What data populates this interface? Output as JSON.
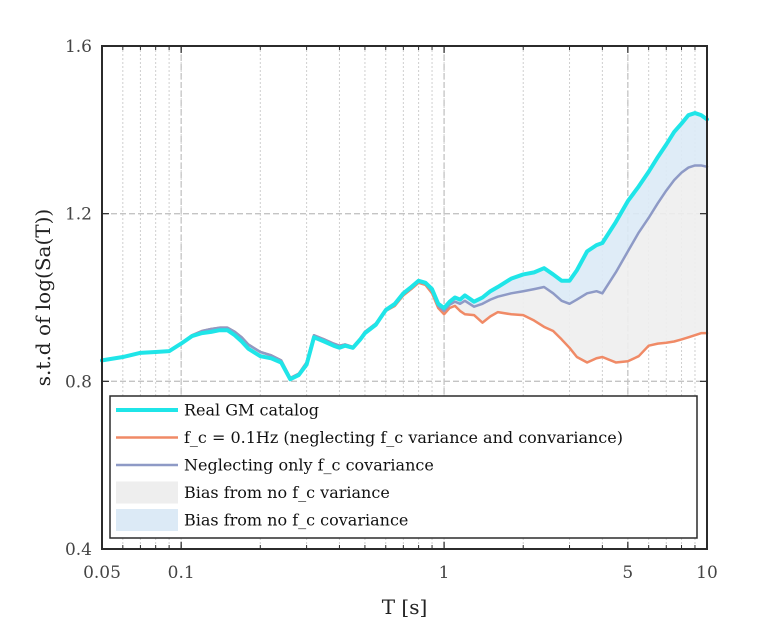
{
  "chart_data": {
    "type": "line",
    "xscale": "log",
    "xlim": [
      0.05,
      10
    ],
    "ylim": [
      0.4,
      1.6
    ],
    "xlabel": "T [s]",
    "ylabel": "s.t.d of log(Sa(T))",
    "xticks": [
      0.05,
      0.1,
      1,
      5,
      10
    ],
    "xtick_labels": [
      "0.05",
      "0.1",
      "1",
      "5",
      "10"
    ],
    "yticks": [
      0.4,
      0.8,
      1.2,
      1.6
    ],
    "ytick_labels": [
      "0.4",
      "0.8",
      "1.2",
      "1.6"
    ],
    "grid": true,
    "legend_position": "bottom-left",
    "colors": {
      "real": "#1FE5E8",
      "fc": "#F08A66",
      "cov": "#8E9AC6",
      "fill_variance": "#EEEEEE",
      "fill_covariance": "#DCEAF6"
    },
    "series": [
      {
        "name": "Real GM catalog",
        "x": [
          0.05,
          0.06,
          0.07,
          0.08,
          0.09,
          0.1,
          0.11,
          0.12,
          0.13,
          0.14,
          0.15,
          0.16,
          0.17,
          0.18,
          0.2,
          0.22,
          0.24,
          0.26,
          0.28,
          0.3,
          0.32,
          0.35,
          0.38,
          0.4,
          0.42,
          0.45,
          0.48,
          0.5,
          0.55,
          0.6,
          0.65,
          0.7,
          0.75,
          0.8,
          0.85,
          0.9,
          0.95,
          1.0,
          1.05,
          1.1,
          1.15,
          1.2,
          1.3,
          1.4,
          1.5,
          1.6,
          1.8,
          2.0,
          2.2,
          2.4,
          2.6,
          2.8,
          3.0,
          3.2,
          3.5,
          3.8,
          4.0,
          4.5,
          5.0,
          5.5,
          6.0,
          6.5,
          7.0,
          7.5,
          8.0,
          8.5,
          9.0,
          9.5,
          10.0
        ],
        "y": [
          0.85,
          0.858,
          0.868,
          0.87,
          0.872,
          0.89,
          0.908,
          0.915,
          0.918,
          0.922,
          0.922,
          0.91,
          0.895,
          0.878,
          0.86,
          0.855,
          0.845,
          0.805,
          0.815,
          0.84,
          0.905,
          0.895,
          0.885,
          0.88,
          0.885,
          0.88,
          0.9,
          0.915,
          0.935,
          0.97,
          0.985,
          1.01,
          1.025,
          1.04,
          1.035,
          1.02,
          0.985,
          0.975,
          0.99,
          1.0,
          0.995,
          1.005,
          0.99,
          1.0,
          1.015,
          1.025,
          1.045,
          1.055,
          1.06,
          1.07,
          1.055,
          1.04,
          1.04,
          1.065,
          1.11,
          1.125,
          1.13,
          1.18,
          1.23,
          1.265,
          1.3,
          1.335,
          1.365,
          1.395,
          1.415,
          1.435,
          1.44,
          1.435,
          1.425
        ]
      },
      {
        "name": "f_c = 0.1Hz (neglecting f_c variance and convariance)",
        "legend_label": "f_c = 0.1Hz (neglecting f_c variance and convariance)",
        "x": [
          0.05,
          0.06,
          0.07,
          0.08,
          0.09,
          0.1,
          0.11,
          0.12,
          0.13,
          0.14,
          0.15,
          0.16,
          0.17,
          0.18,
          0.2,
          0.22,
          0.24,
          0.26,
          0.28,
          0.3,
          0.32,
          0.35,
          0.38,
          0.4,
          0.42,
          0.45,
          0.48,
          0.5,
          0.55,
          0.6,
          0.65,
          0.7,
          0.75,
          0.8,
          0.85,
          0.9,
          0.95,
          1.0,
          1.05,
          1.1,
          1.15,
          1.2,
          1.3,
          1.4,
          1.5,
          1.6,
          1.8,
          2.0,
          2.2,
          2.4,
          2.6,
          2.8,
          3.0,
          3.2,
          3.5,
          3.8,
          4.0,
          4.5,
          5.0,
          5.5,
          6.0,
          6.5,
          7.0,
          7.5,
          8.0,
          8.5,
          9.0,
          9.5,
          10.0
        ],
        "y": [
          0.85,
          0.858,
          0.868,
          0.87,
          0.872,
          0.89,
          0.91,
          0.92,
          0.925,
          0.928,
          0.928,
          0.918,
          0.905,
          0.888,
          0.87,
          0.862,
          0.85,
          0.808,
          0.818,
          0.845,
          0.91,
          0.9,
          0.89,
          0.885,
          0.888,
          0.882,
          0.902,
          0.918,
          0.938,
          0.968,
          0.98,
          1.005,
          1.02,
          1.035,
          1.03,
          1.01,
          0.975,
          0.96,
          0.975,
          0.98,
          0.968,
          0.96,
          0.958,
          0.94,
          0.955,
          0.965,
          0.96,
          0.958,
          0.945,
          0.93,
          0.92,
          0.9,
          0.88,
          0.858,
          0.845,
          0.855,
          0.858,
          0.845,
          0.848,
          0.86,
          0.885,
          0.89,
          0.892,
          0.895,
          0.9,
          0.905,
          0.91,
          0.915,
          0.915
        ]
      },
      {
        "name": "Neglecting only f_c covariance",
        "x": [
          0.05,
          0.06,
          0.07,
          0.08,
          0.09,
          0.1,
          0.11,
          0.12,
          0.13,
          0.14,
          0.15,
          0.16,
          0.17,
          0.18,
          0.2,
          0.22,
          0.24,
          0.26,
          0.28,
          0.3,
          0.32,
          0.35,
          0.38,
          0.4,
          0.42,
          0.45,
          0.48,
          0.5,
          0.55,
          0.6,
          0.65,
          0.7,
          0.75,
          0.8,
          0.85,
          0.9,
          0.95,
          1.0,
          1.05,
          1.1,
          1.15,
          1.2,
          1.3,
          1.4,
          1.5,
          1.6,
          1.8,
          2.0,
          2.2,
          2.4,
          2.6,
          2.8,
          3.0,
          3.2,
          3.5,
          3.8,
          4.0,
          4.5,
          5.0,
          5.5,
          6.0,
          6.5,
          7.0,
          7.5,
          8.0,
          8.5,
          9.0,
          9.5,
          10.0
        ],
        "y": [
          0.85,
          0.858,
          0.868,
          0.87,
          0.872,
          0.89,
          0.91,
          0.92,
          0.925,
          0.928,
          0.928,
          0.918,
          0.905,
          0.888,
          0.87,
          0.862,
          0.85,
          0.808,
          0.818,
          0.845,
          0.91,
          0.9,
          0.89,
          0.885,
          0.888,
          0.882,
          0.902,
          0.918,
          0.938,
          0.968,
          0.983,
          1.008,
          1.022,
          1.038,
          1.033,
          1.015,
          0.98,
          0.968,
          0.983,
          0.99,
          0.985,
          0.992,
          0.978,
          0.985,
          0.995,
          1.002,
          1.01,
          1.015,
          1.02,
          1.025,
          1.01,
          0.992,
          0.985,
          0.995,
          1.01,
          1.015,
          1.01,
          1.06,
          1.11,
          1.155,
          1.19,
          1.225,
          1.255,
          1.28,
          1.298,
          1.31,
          1.315,
          1.315,
          1.312
        ]
      }
    ],
    "fills": [
      {
        "name": "Bias from no f_c variance",
        "between": [
          "f_c = 0.1Hz (neglecting f_c variance and convariance)",
          "Neglecting only f_c covariance"
        ]
      },
      {
        "name": "Bias from no f_c covariance",
        "between": [
          "Neglecting only f_c covariance",
          "Real GM catalog"
        ]
      }
    ],
    "legend": [
      {
        "label": "Real GM catalog",
        "kind": "line",
        "color_key": "real",
        "width": 4
      },
      {
        "label": "f_c = 0.1Hz (neglecting f_c variance and convariance)",
        "kind": "line",
        "color_key": "fc",
        "width": 2.5
      },
      {
        "label": "Neglecting only f_c covariance",
        "kind": "line",
        "color_key": "cov",
        "width": 2.5
      },
      {
        "label": "Bias from no f_c variance",
        "kind": "patch",
        "color_key": "fill_variance"
      },
      {
        "label": "Bias from no f_c covariance",
        "kind": "patch",
        "color_key": "fill_covariance"
      }
    ]
  }
}
